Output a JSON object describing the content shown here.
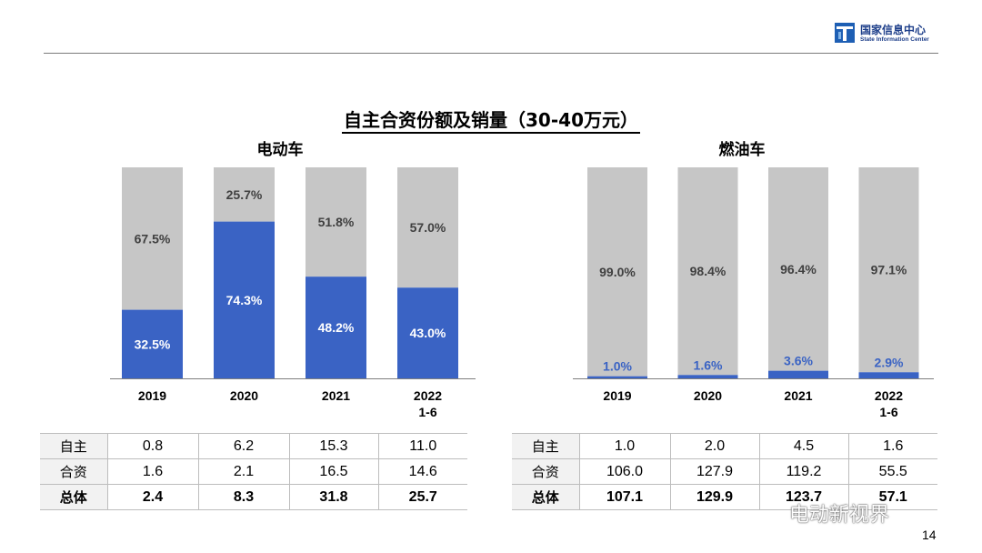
{
  "header": {
    "logo_cn": "国家信息中心",
    "logo_en": "State Information Center"
  },
  "title": "自主合资份额及销量（30-40万元）",
  "page_number": "14",
  "watermark": "电动新视界",
  "colors": {
    "domestic": "#3a63c4",
    "joint": "#c6c6c6"
  },
  "chart_data": [
    {
      "type": "bar",
      "stacked": true,
      "title": "电动车",
      "categories": [
        "2019",
        "2020",
        "2021",
        "2022\n1-6"
      ],
      "series": [
        {
          "name": "自主",
          "values": [
            32.5,
            74.3,
            48.2,
            43.0
          ],
          "labels": [
            "32.5%",
            "74.3%",
            "48.2%",
            "43.0%"
          ]
        },
        {
          "name": "合资",
          "values": [
            67.5,
            25.7,
            51.8,
            57.0
          ],
          "labels": [
            "67.5%",
            "25.7%",
            "51.8%",
            "57.0%"
          ]
        }
      ],
      "ylim": [
        0,
        100
      ]
    },
    {
      "type": "bar",
      "stacked": true,
      "title": "燃油车",
      "categories": [
        "2019",
        "2020",
        "2021",
        "2022\n1-6"
      ],
      "series": [
        {
          "name": "自主",
          "values": [
            1.0,
            1.6,
            3.6,
            2.9
          ],
          "labels": [
            "1.0%",
            "1.6%",
            "3.6%",
            "2.9%"
          ]
        },
        {
          "name": "合资",
          "values": [
            99.0,
            98.4,
            96.4,
            97.1
          ],
          "labels": [
            "99.0%",
            "98.4%",
            "96.4%",
            "97.1%"
          ]
        }
      ],
      "ylim": [
        0,
        100
      ]
    }
  ],
  "tables": [
    {
      "rows": [
        {
          "label": "自主",
          "values": [
            "0.8",
            "6.2",
            "15.3",
            "11.0"
          ]
        },
        {
          "label": "合资",
          "values": [
            "1.6",
            "2.1",
            "16.5",
            "14.6"
          ]
        },
        {
          "label": "总体",
          "values": [
            "2.4",
            "8.3",
            "31.8",
            "25.7"
          ]
        }
      ]
    },
    {
      "rows": [
        {
          "label": "自主",
          "values": [
            "1.0",
            "2.0",
            "4.5",
            "1.6"
          ]
        },
        {
          "label": "合资",
          "values": [
            "106.0",
            "127.9",
            "119.2",
            "55.5"
          ]
        },
        {
          "label": "总体",
          "values": [
            "107.1",
            "129.9",
            "123.7",
            "57.1"
          ]
        }
      ]
    }
  ]
}
